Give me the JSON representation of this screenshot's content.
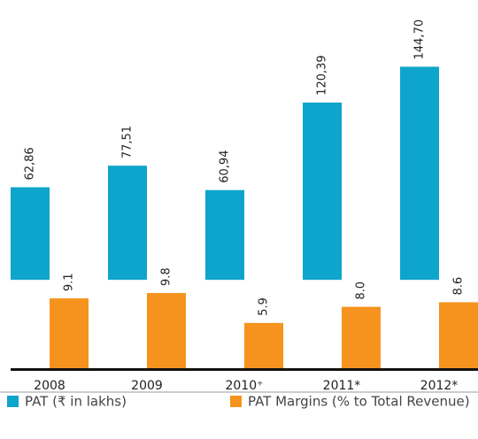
{
  "chart_data": {
    "type": "bar",
    "categories": [
      "2008",
      "2009",
      "2010⁺",
      "2011*",
      "2012*"
    ],
    "series": [
      {
        "name": "PAT (₹ in lakhs)",
        "color": "#0ea5cc",
        "values": [
          6286,
          7751,
          6094,
          12039,
          14470
        ],
        "value_labels": [
          "62,86",
          "77,51",
          "60,94",
          "120,39",
          "144,70"
        ]
      },
      {
        "name": "PAT Margins (% to Total Revenue)",
        "color": "#f5931e",
        "values": [
          9.1,
          9.8,
          5.9,
          8.0,
          8.6
        ],
        "value_labels": [
          "9.1",
          "9.8",
          "5.9",
          "8.0",
          "8.6"
        ],
        "axis": "y2"
      }
    ],
    "ylim": [
      -6000,
      19000
    ],
    "y2lim": [
      0,
      48
    ]
  }
}
